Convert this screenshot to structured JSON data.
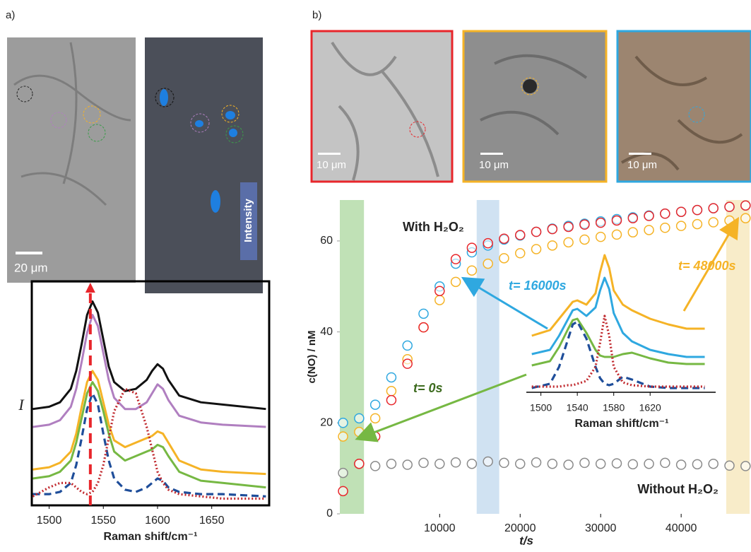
{
  "panel_labels": [
    "a)",
    "b)"
  ],
  "scale_bars": [
    "20 μm",
    "10 μm",
    "10 μm",
    "10 μm"
  ],
  "intensity_label": "Intensity",
  "chart_data": [
    {
      "type": "line",
      "x_label": "Raman shift/cm⁻¹",
      "y_label": "I",
      "x": [
        1485,
        1500,
        1510,
        1520,
        1525,
        1530,
        1535,
        1540,
        1545,
        1550,
        1555,
        1560,
        1570,
        1580,
        1590,
        1595,
        1600,
        1605,
        1610,
        1620,
        1640,
        1660,
        1700
      ],
      "xlim": [
        1484,
        1703
      ],
      "xticks": [
        1500,
        1550,
        1600,
        1650
      ],
      "ylim": [
        0,
        100
      ],
      "marker_line": {
        "x": 1538,
        "color": "#e8262b"
      },
      "series": [
        {
          "color": "#111111",
          "dash": "solid",
          "values": [
            43,
            44,
            46,
            52,
            60,
            72,
            85,
            91,
            86,
            74,
            62,
            55,
            51,
            52,
            56,
            60,
            63,
            61,
            56,
            49,
            46,
            45,
            43
          ]
        },
        {
          "color": "#b07fc0",
          "dash": "solid",
          "values": [
            35,
            36,
            38,
            44,
            52,
            64,
            77,
            85,
            80,
            68,
            56,
            48,
            43,
            43,
            46,
            50,
            54,
            52,
            47,
            40,
            37,
            36,
            35
          ]
        },
        {
          "color": "#f5b326",
          "dash": "solid",
          "values": [
            16,
            17,
            19,
            24,
            32,
            44,
            55,
            60,
            56,
            46,
            36,
            29,
            26,
            28,
            30,
            31,
            33,
            32,
            28,
            20,
            16,
            15,
            14
          ]
        },
        {
          "color": "#76b843",
          "dash": "solid",
          "values": [
            12,
            13,
            15,
            20,
            28,
            39,
            50,
            55,
            51,
            42,
            32,
            24,
            20,
            22,
            24,
            25,
            27,
            26,
            22,
            15,
            11,
            10,
            8
          ]
        },
        {
          "color": "#1f4e9a",
          "dash": "dashed",
          "values": [
            5,
            5,
            6,
            10,
            18,
            30,
            43,
            50,
            45,
            32,
            20,
            12,
            7,
            6,
            8,
            10,
            12,
            11,
            8,
            6,
            5,
            5,
            4
          ]
        },
        {
          "color": "#c0282d",
          "dash": "dotted",
          "values": [
            4,
            8,
            10,
            10,
            8,
            6,
            5,
            6,
            10,
            18,
            30,
            42,
            52,
            50,
            35,
            25,
            15,
            10,
            7,
            5,
            4,
            3,
            3
          ]
        }
      ]
    },
    {
      "type": "scatter",
      "x_label": "t/s",
      "y_label": "c(NO) / nM",
      "x": [
        -2000,
        0,
        2000,
        4000,
        6000,
        8000,
        10000,
        12000,
        14000,
        16000,
        18000,
        20000,
        22000,
        24000,
        26000,
        28000,
        30000,
        32000,
        34000,
        36000,
        38000,
        40000,
        42000,
        44000,
        46000,
        48000
      ],
      "xlim": [
        -2400,
        48500
      ],
      "xticks": [
        10000,
        20000,
        30000,
        40000
      ],
      "ylim": [
        0,
        69
      ],
      "yticks": [
        0,
        20,
        40,
        60
      ],
      "bands": [
        {
          "from": -2400,
          "to": 600,
          "color": "#8cc97a"
        },
        {
          "from": 14600,
          "to": 17400,
          "color": "#a9cbe8"
        },
        {
          "from": 45600,
          "to": 48500,
          "color": "#f3dc9c"
        }
      ],
      "annotations": [
        {
          "text": "With H₂O₂",
          "color": "#222222"
        },
        {
          "text": "Without H₂O₂",
          "color": "#222222"
        },
        {
          "text": "t= 0s",
          "color": "#3d6b1f"
        },
        {
          "text": "t= 16000s",
          "color": "#2fa8e0"
        },
        {
          "text": "t= 48000s",
          "color": "#f5b326"
        }
      ],
      "series": [
        {
          "color": "#8a8a8a",
          "values": [
            9,
            11,
            10.5,
            11,
            10.8,
            11.2,
            11,
            11.3,
            11,
            11.5,
            11.2,
            11,
            11.3,
            11,
            10.8,
            11.2,
            11,
            11.1,
            10.9,
            11,
            11.2,
            10.8,
            10.9,
            11,
            10.6,
            10.5
          ]
        },
        {
          "color": "#2fa8e0",
          "values": [
            20,
            21,
            24,
            30,
            37,
            44,
            50,
            55,
            57.5,
            59,
            60.3,
            61.2,
            62,
            62.7,
            63.3,
            63.8,
            64.3,
            64.8,
            65.2,
            65.6,
            66,
            66.4,
            66.8,
            67.2,
            67.5,
            67.8
          ]
        },
        {
          "color": "#f5b326",
          "values": [
            17,
            18,
            21,
            27,
            34,
            41,
            47,
            51,
            53.5,
            55,
            56.2,
            57.3,
            58.2,
            59,
            59.7,
            60.3,
            60.9,
            61.4,
            61.9,
            62.4,
            62.9,
            63.3,
            63.7,
            64.1,
            64.5,
            65
          ]
        },
        {
          "color": "#e8262b",
          "values": [
            5,
            11,
            17,
            25,
            33,
            41,
            49,
            56,
            58.5,
            59.5,
            60.5,
            61.3,
            62,
            62.6,
            63.1,
            63.6,
            64,
            64.5,
            65,
            65.5,
            66,
            66.4,
            66.8,
            67.2,
            67.5,
            67.8
          ]
        }
      ]
    },
    {
      "type": "line",
      "x_label": "Raman shift/cm⁻¹",
      "x": [
        1490,
        1510,
        1520,
        1530,
        1535,
        1540,
        1550,
        1560,
        1565,
        1570,
        1575,
        1580,
        1590,
        1600,
        1620,
        1640,
        1660,
        1680
      ],
      "xlim": [
        1484,
        1692
      ],
      "xticks": [
        1500,
        1540,
        1580,
        1620
      ],
      "ylim": [
        0,
        100
      ],
      "series": [
        {
          "color": "#f5b326",
          "dash": "solid",
          "values": [
            40,
            44,
            52,
            60,
            64,
            65,
            62,
            70,
            85,
            97,
            88,
            72,
            62,
            58,
            52,
            48,
            45,
            45
          ]
        },
        {
          "color": "#2fa8e0",
          "dash": "solid",
          "values": [
            27,
            30,
            40,
            52,
            58,
            59,
            54,
            60,
            72,
            81,
            73,
            56,
            42,
            36,
            30,
            27,
            25,
            25
          ]
        },
        {
          "color": "#76b843",
          "dash": "solid",
          "values": [
            19,
            22,
            32,
            45,
            51,
            52,
            42,
            30,
            26,
            25,
            25,
            25,
            27,
            28,
            24,
            21,
            20,
            20
          ]
        },
        {
          "color": "#1f4e9a",
          "dash": "dashed",
          "values": [
            3,
            6,
            18,
            38,
            48,
            50,
            38,
            18,
            10,
            6,
            5,
            6,
            11,
            9,
            4,
            3,
            3,
            3
          ]
        },
        {
          "color": "#c0282d",
          "dash": "dotted",
          "values": [
            4,
            4,
            4,
            5,
            5,
            6,
            8,
            18,
            35,
            54,
            40,
            18,
            7,
            5,
            4,
            4,
            4,
            4
          ]
        }
      ]
    }
  ]
}
